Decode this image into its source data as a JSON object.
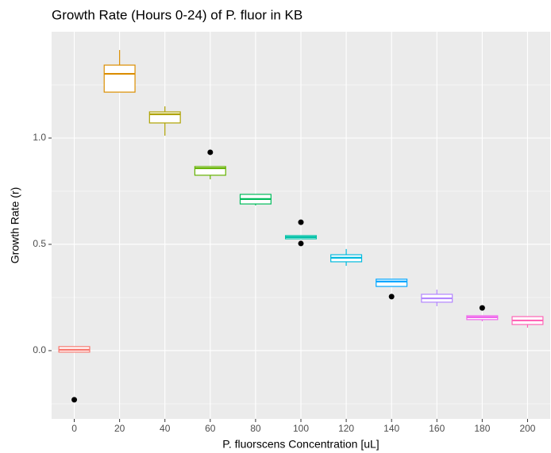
{
  "chart_data": {
    "type": "box",
    "title": "Growth Rate (Hours 0-24) of P. fluor in KB",
    "x_label": "P. fluorscens Concentration [uL]",
    "y_label": "Growth Rate (r)",
    "categories": [
      "0",
      "20",
      "40",
      "60",
      "80",
      "100",
      "120",
      "140",
      "160",
      "180",
      "200"
    ],
    "colors": [
      "#F8766D",
      "#DB8E00",
      "#AEA200",
      "#64B200",
      "#00BD5C",
      "#00C1A7",
      "#00BADE",
      "#00A6FF",
      "#B385FF",
      "#EF67EB",
      "#FF63B6"
    ],
    "boxes": [
      {
        "min": -0.007,
        "q1": -0.007,
        "median": 0.004,
        "q3": 0.019,
        "max": 0.019,
        "outliers": [
          -0.231
        ]
      },
      {
        "min": 1.216,
        "q1": 1.216,
        "median": 1.302,
        "q3": 1.343,
        "max": 1.414,
        "outliers": []
      },
      {
        "min": 1.011,
        "q1": 1.071,
        "median": 1.112,
        "q3": 1.123,
        "max": 1.149,
        "outliers": []
      },
      {
        "min": 0.806,
        "q1": 0.825,
        "median": 0.858,
        "q3": 0.866,
        "max": 0.866,
        "outliers": [
          0.933
        ]
      },
      {
        "min": 0.683,
        "q1": 0.69,
        "median": 0.713,
        "q3": 0.735,
        "max": 0.735,
        "outliers": []
      },
      {
        "min": 0.526,
        "q1": 0.526,
        "median": 0.534,
        "q3": 0.541,
        "max": 0.541,
        "outliers": [
          0.604,
          0.504
        ]
      },
      {
        "min": 0.399,
        "q1": 0.418,
        "median": 0.437,
        "q3": 0.451,
        "max": 0.478,
        "outliers": []
      },
      {
        "min": 0.302,
        "q1": 0.302,
        "median": 0.325,
        "q3": 0.336,
        "max": 0.336,
        "outliers": [
          0.254
        ]
      },
      {
        "min": 0.209,
        "q1": 0.228,
        "median": 0.246,
        "q3": 0.265,
        "max": 0.287,
        "outliers": []
      },
      {
        "min": 0.138,
        "q1": 0.146,
        "median": 0.157,
        "q3": 0.164,
        "max": 0.164,
        "outliers": [
          0.201
        ]
      },
      {
        "min": 0.108,
        "q1": 0.123,
        "median": 0.142,
        "q3": 0.16,
        "max": 0.16,
        "outliers": []
      }
    ],
    "ylim": [
      -0.321,
      1.5
    ],
    "yticks": [
      {
        "value": 0,
        "label": "0.0"
      },
      {
        "value": 0.5,
        "label": "0.5"
      },
      {
        "value": 1,
        "label": "1.0"
      }
    ],
    "grid": true
  }
}
